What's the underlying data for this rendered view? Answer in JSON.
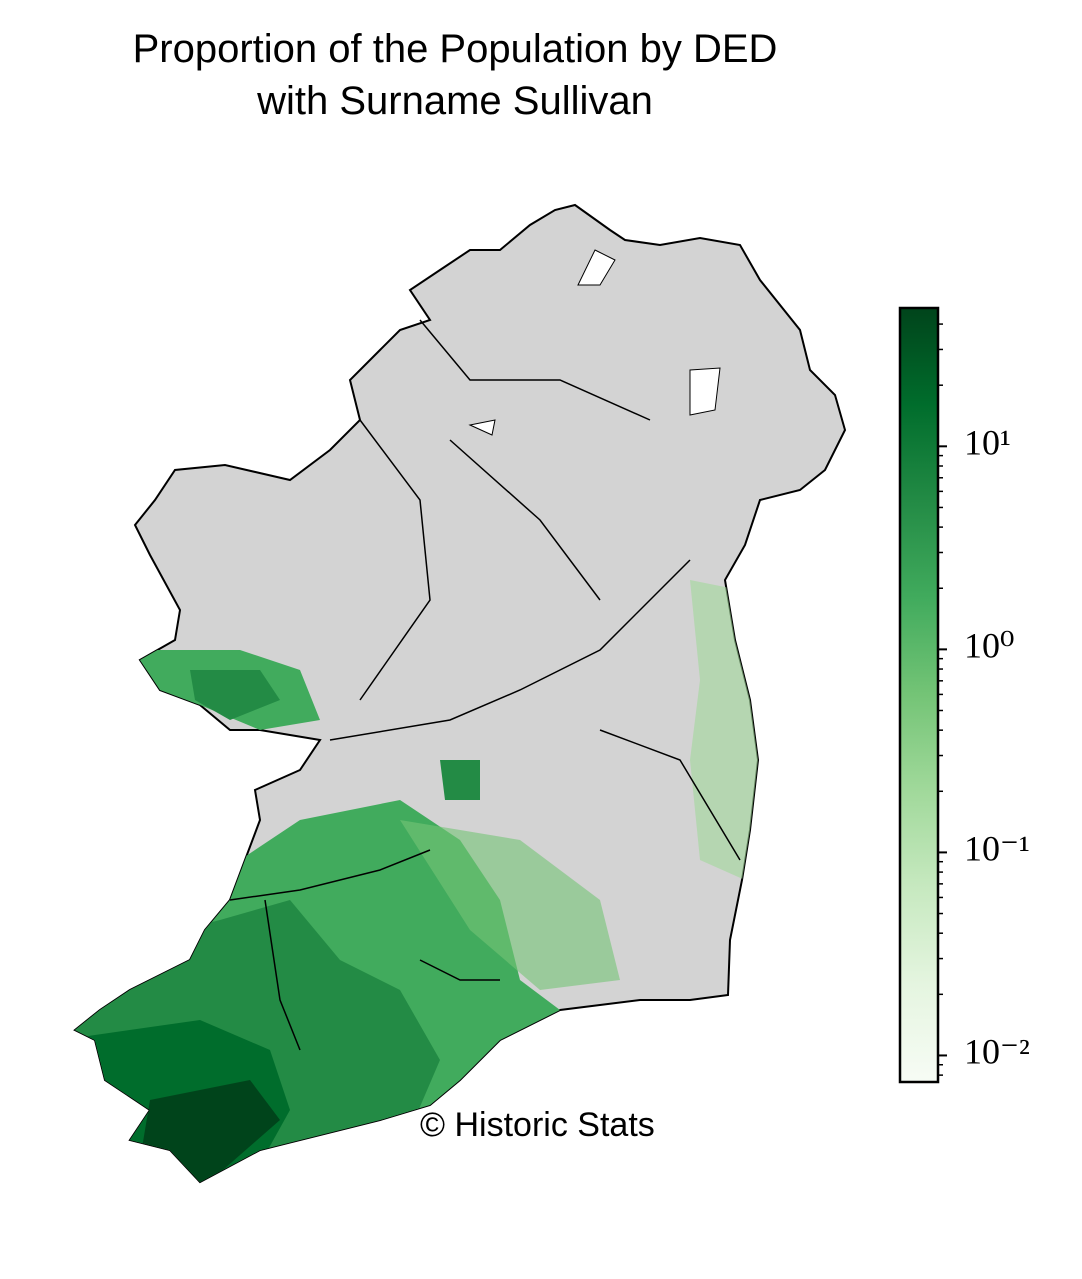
{
  "title": [
    "Proportion of the Population by DED",
    "with Surname Sullivan"
  ],
  "credit": "© Historic Stats",
  "colorbar": {
    "scale": "log",
    "range": [
      0.0074,
      48
    ],
    "colors": [
      "#f7fcf5",
      "#e5f5e0",
      "#c7e9c0",
      "#a1d99b",
      "#74c476",
      "#41ab5d",
      "#238b45",
      "#006d2c",
      "#00441b"
    ],
    "ticks": [
      {
        "value": 0.01,
        "label": "10⁻²"
      },
      {
        "value": 0.1,
        "label": "10⁻¹"
      },
      {
        "value": 1,
        "label": "10⁰"
      },
      {
        "value": 10,
        "label": "10¹"
      }
    ]
  }
}
